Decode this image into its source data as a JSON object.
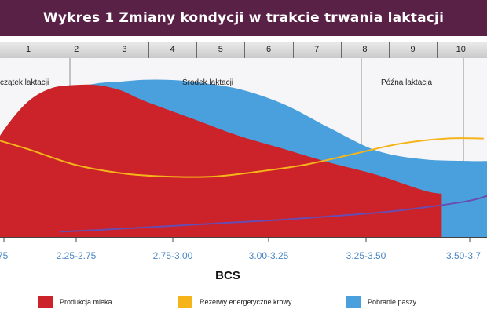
{
  "title": "Wykres 1 Zmiany kondycji w trakcie trwania laktacji",
  "months": [
    "1",
    "2",
    "3",
    "4",
    "5",
    "6",
    "7",
    "8",
    "9",
    "10"
  ],
  "phases": [
    {
      "label": "czątek laktacji"
    },
    {
      "label": "Środek laktacji"
    },
    {
      "label": "Późna laktacja"
    }
  ],
  "colors": {
    "title_bg": "#5a2147",
    "milk": "#cc2229",
    "feed": "#4aa0dc",
    "reserves": "#f4b41a",
    "bcs_line": "#6a4cb0",
    "axis_labels": "#4a86c5"
  },
  "chart_data": {
    "type": "area",
    "title": "Wykres 1 Zmiany kondycji w trakcie trwania laktacji",
    "xlabel": "BCS",
    "ylabel": "",
    "grid": false,
    "legend_position": "bottom",
    "x_month_ticks": [
      "1",
      "2",
      "3",
      "4",
      "5",
      "6",
      "7",
      "8",
      "9",
      "10"
    ],
    "bcs_categories": [
      "75",
      "2.25-2.75",
      "2.75-3.00",
      "3.00-3.25",
      "3.25-3.50",
      "3.50-3.7"
    ],
    "x_relative_range": [
      0,
      10.5
    ],
    "y_relative_range": [
      0,
      1
    ],
    "series": [
      {
        "name": "Produkcja mleka",
        "kind": "area",
        "x": [
          -0.5,
          0,
          0.5,
          1.0,
          1.5,
          2.0,
          2.5,
          3,
          4,
          5,
          6,
          7,
          8,
          9,
          9.4
        ],
        "y": [
          0.4,
          0.62,
          0.78,
          0.86,
          0.88,
          0.88,
          0.85,
          0.79,
          0.69,
          0.59,
          0.51,
          0.43,
          0.36,
          0.27,
          0.25
        ]
      },
      {
        "name": "Pobranie paszy",
        "kind": "area",
        "x": [
          0,
          0.5,
          1,
          1.5,
          2,
          2.5,
          3,
          3.5,
          4,
          5,
          6,
          7,
          8,
          9,
          10,
          10.5
        ],
        "y": [
          0.52,
          0.68,
          0.8,
          0.86,
          0.89,
          0.9,
          0.91,
          0.91,
          0.9,
          0.86,
          0.77,
          0.63,
          0.5,
          0.45,
          0.44,
          0.44
        ]
      },
      {
        "name": "Rezerwy energetyczne krowy",
        "kind": "line",
        "x": [
          -0.5,
          0.5,
          1.5,
          2.5,
          3.5,
          4.5,
          5.5,
          6.5,
          7.5,
          8.5,
          9.5,
          10.3
        ],
        "y": [
          0.59,
          0.51,
          0.42,
          0.37,
          0.35,
          0.35,
          0.38,
          0.42,
          0.48,
          0.54,
          0.57,
          0.57
        ]
      },
      {
        "kind": "line",
        "x": [
          1.2,
          2,
          3,
          4,
          5,
          6,
          7,
          8,
          9,
          10,
          10.5
        ],
        "y": [
          0.03,
          0.04,
          0.055,
          0.07,
          0.085,
          0.1,
          0.12,
          0.14,
          0.17,
          0.21,
          0.25
        ]
      }
    ]
  },
  "legend": [
    {
      "label": "Produkcja mleka",
      "color": "#cc2229"
    },
    {
      "label": "Rezerwy energetyczne krowy",
      "color": "#f4b41a"
    },
    {
      "label": "Pobranie paszy",
      "color": "#4aa0dc"
    }
  ]
}
